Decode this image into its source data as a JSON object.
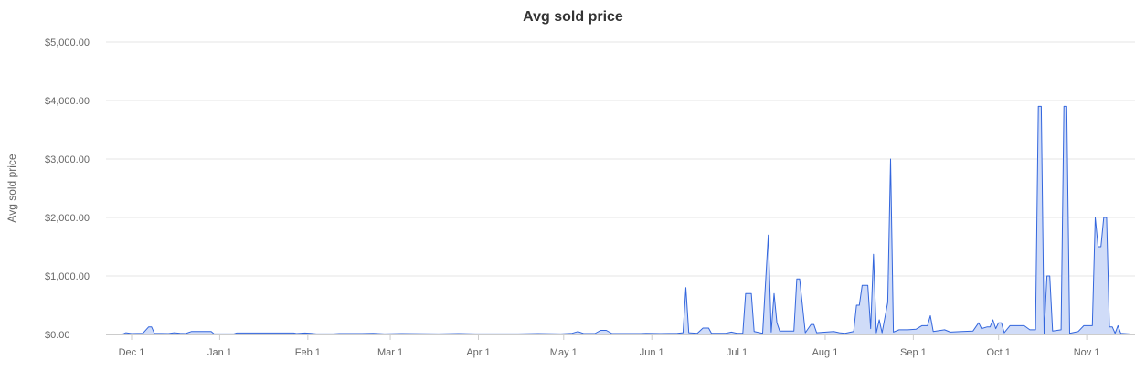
{
  "chart_data": {
    "type": "area",
    "title": "Avg sold price",
    "ylabel": "Avg sold price",
    "xlabel": "",
    "ylim": [
      0,
      5000
    ],
    "yticks": [
      {
        "value": 0,
        "label": "$0.00"
      },
      {
        "value": 1000,
        "label": "$1,000.00"
      },
      {
        "value": 2000,
        "label": "$2,000.00"
      },
      {
        "value": 3000,
        "label": "$3,000.00"
      },
      {
        "value": 4000,
        "label": "$4,000.00"
      },
      {
        "value": 5000,
        "label": "$5,000.00"
      }
    ],
    "xrange": [
      "2023-11-22",
      "2024-11-18"
    ],
    "xticks": [
      {
        "date": "2023-12-01",
        "label": "Dec 1"
      },
      {
        "date": "2024-01-01",
        "label": "Jan 1"
      },
      {
        "date": "2024-02-01",
        "label": "Feb 1"
      },
      {
        "date": "2024-03-01",
        "label": "Mar 1"
      },
      {
        "date": "2024-04-01",
        "label": "Apr 1"
      },
      {
        "date": "2024-05-01",
        "label": "May 1"
      },
      {
        "date": "2024-06-01",
        "label": "Jun 1"
      },
      {
        "date": "2024-07-01",
        "label": "Jul 1"
      },
      {
        "date": "2024-08-01",
        "label": "Aug 1"
      },
      {
        "date": "2024-09-01",
        "label": "Sep 1"
      },
      {
        "date": "2024-10-01",
        "label": "Oct 1"
      },
      {
        "date": "2024-11-01",
        "label": "Nov 1"
      }
    ],
    "grid": true,
    "legend": "none",
    "colors": {
      "line": "#3366dd",
      "fill": "#d0dcf8",
      "grid": "#e6e6e6"
    },
    "series": [
      {
        "points": [
          [
            "2023-11-24",
            0
          ],
          [
            "2023-11-28",
            10
          ],
          [
            "2023-11-29",
            30
          ],
          [
            "2023-12-01",
            15
          ],
          [
            "2023-12-05",
            20
          ],
          [
            "2023-12-07",
            130
          ],
          [
            "2023-12-08",
            130
          ],
          [
            "2023-12-09",
            20
          ],
          [
            "2023-12-14",
            15
          ],
          [
            "2023-12-16",
            30
          ],
          [
            "2023-12-18",
            20
          ],
          [
            "2023-12-20",
            15
          ],
          [
            "2023-12-22",
            50
          ],
          [
            "2023-12-29",
            50
          ],
          [
            "2023-12-30",
            10
          ],
          [
            "2024-01-06",
            10
          ],
          [
            "2024-01-07",
            25
          ],
          [
            "2024-01-27",
            25
          ],
          [
            "2024-01-28",
            15
          ],
          [
            "2024-01-31",
            25
          ],
          [
            "2024-02-02",
            20
          ],
          [
            "2024-02-04",
            10
          ],
          [
            "2024-02-10",
            10
          ],
          [
            "2024-02-12",
            15
          ],
          [
            "2024-02-20",
            15
          ],
          [
            "2024-02-24",
            20
          ],
          [
            "2024-02-28",
            10
          ],
          [
            "2024-03-05",
            15
          ],
          [
            "2024-03-18",
            10
          ],
          [
            "2024-03-25",
            15
          ],
          [
            "2024-03-31",
            10
          ],
          [
            "2024-04-15",
            10
          ],
          [
            "2024-04-22",
            15
          ],
          [
            "2024-04-30",
            10
          ],
          [
            "2024-05-04",
            20
          ],
          [
            "2024-05-06",
            50
          ],
          [
            "2024-05-08",
            15
          ],
          [
            "2024-05-12",
            15
          ],
          [
            "2024-05-14",
            70
          ],
          [
            "2024-05-16",
            70
          ],
          [
            "2024-05-18",
            15
          ],
          [
            "2024-05-28",
            15
          ],
          [
            "2024-05-30",
            20
          ],
          [
            "2024-06-04",
            15
          ],
          [
            "2024-06-10",
            20
          ],
          [
            "2024-06-12",
            30
          ],
          [
            "2024-06-13",
            800
          ],
          [
            "2024-06-14",
            30
          ],
          [
            "2024-06-17",
            20
          ],
          [
            "2024-06-19",
            110
          ],
          [
            "2024-06-21",
            110
          ],
          [
            "2024-06-22",
            20
          ],
          [
            "2024-06-27",
            20
          ],
          [
            "2024-06-29",
            40
          ],
          [
            "2024-07-01",
            20
          ],
          [
            "2024-07-03",
            20
          ],
          [
            "2024-07-04",
            700
          ],
          [
            "2024-07-06",
            700
          ],
          [
            "2024-07-07",
            50
          ],
          [
            "2024-07-10",
            20
          ],
          [
            "2024-07-12",
            1700
          ],
          [
            "2024-07-13",
            40
          ],
          [
            "2024-07-14",
            700
          ],
          [
            "2024-07-15",
            200
          ],
          [
            "2024-07-16",
            60
          ],
          [
            "2024-07-21",
            60
          ],
          [
            "2024-07-22",
            950
          ],
          [
            "2024-07-23",
            950
          ],
          [
            "2024-07-25",
            30
          ],
          [
            "2024-07-27",
            170
          ],
          [
            "2024-07-28",
            170
          ],
          [
            "2024-07-29",
            30
          ],
          [
            "2024-08-04",
            50
          ],
          [
            "2024-08-06",
            30
          ],
          [
            "2024-08-08",
            20
          ],
          [
            "2024-08-11",
            50
          ],
          [
            "2024-08-12",
            500
          ],
          [
            "2024-08-13",
            500
          ],
          [
            "2024-08-14",
            840
          ],
          [
            "2024-08-16",
            840
          ],
          [
            "2024-08-17",
            100
          ],
          [
            "2024-08-18",
            1370
          ],
          [
            "2024-08-19",
            30
          ],
          [
            "2024-08-20",
            250
          ],
          [
            "2024-08-21",
            30
          ],
          [
            "2024-08-23",
            550
          ],
          [
            "2024-08-24",
            3000
          ],
          [
            "2024-08-25",
            40
          ],
          [
            "2024-08-27",
            80
          ],
          [
            "2024-08-30",
            80
          ],
          [
            "2024-09-02",
            90
          ],
          [
            "2024-09-04",
            150
          ],
          [
            "2024-09-06",
            150
          ],
          [
            "2024-09-07",
            320
          ],
          [
            "2024-09-08",
            50
          ],
          [
            "2024-09-12",
            80
          ],
          [
            "2024-09-14",
            40
          ],
          [
            "2024-09-18",
            50
          ],
          [
            "2024-09-22",
            60
          ],
          [
            "2024-09-24",
            200
          ],
          [
            "2024-09-25",
            100
          ],
          [
            "2024-09-27",
            130
          ],
          [
            "2024-09-28",
            130
          ],
          [
            "2024-09-29",
            250
          ],
          [
            "2024-09-30",
            100
          ],
          [
            "2024-10-01",
            200
          ],
          [
            "2024-10-02",
            200
          ],
          [
            "2024-10-03",
            30
          ],
          [
            "2024-10-05",
            150
          ],
          [
            "2024-10-10",
            150
          ],
          [
            "2024-10-12",
            80
          ],
          [
            "2024-10-14",
            80
          ],
          [
            "2024-10-15",
            3900
          ],
          [
            "2024-10-16",
            3900
          ],
          [
            "2024-10-17",
            20
          ],
          [
            "2024-10-18",
            1000
          ],
          [
            "2024-10-19",
            1000
          ],
          [
            "2024-10-20",
            60
          ],
          [
            "2024-10-23",
            80
          ],
          [
            "2024-10-24",
            3900
          ],
          [
            "2024-10-25",
            3900
          ],
          [
            "2024-10-26",
            20
          ],
          [
            "2024-10-29",
            50
          ],
          [
            "2024-10-31",
            150
          ],
          [
            "2024-11-03",
            150
          ],
          [
            "2024-11-04",
            2000
          ],
          [
            "2024-11-05",
            1500
          ],
          [
            "2024-11-06",
            1500
          ],
          [
            "2024-11-07",
            2000
          ],
          [
            "2024-11-08",
            2000
          ],
          [
            "2024-11-09",
            130
          ],
          [
            "2024-11-10",
            130
          ],
          [
            "2024-11-11",
            20
          ],
          [
            "2024-11-12",
            150
          ],
          [
            "2024-11-13",
            20
          ],
          [
            "2024-11-16",
            10
          ]
        ]
      }
    ]
  }
}
